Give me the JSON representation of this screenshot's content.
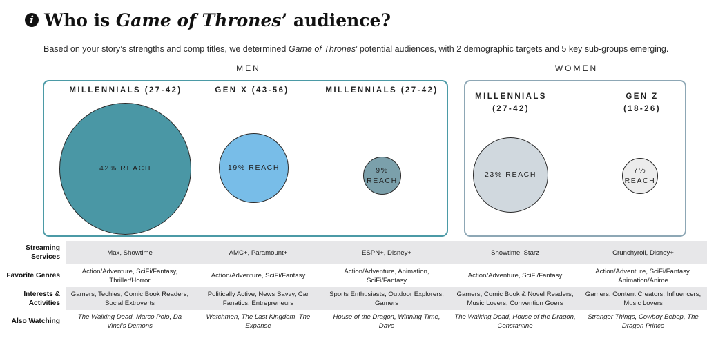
{
  "title": {
    "prefix": "Who is ",
    "italic": "Game of Thrones",
    "suffix": "’ audience?"
  },
  "subtitle": {
    "part1": "Based on your story’s strengths and comp titles, we determined ",
    "italic": "Game of Thrones",
    "part2": "’ potential audiences, with 2 demographic targets and 5 key sub-groups emerging."
  },
  "groups": {
    "men": "MEN",
    "women": "WOMEN"
  },
  "segments": [
    {
      "label": "MILLENNIALS (27-42)",
      "reach_label": "42% REACH",
      "reach": 42,
      "color": "#4a97a5"
    },
    {
      "label": "GEN X (43-56)",
      "reach_label": "19% REACH",
      "reach": 19,
      "color": "#78bde8"
    },
    {
      "label": "MILLENNIALS (27-42)",
      "reach_label_1": "9%",
      "reach_label_2": "REACH",
      "reach": 9,
      "color": "#7ba0ab"
    },
    {
      "label_1": "MILLENNIALS",
      "label_2": "(27-42)",
      "reach_label": "23% REACH",
      "reach": 23,
      "color": "#d0d8de"
    },
    {
      "label_1": "GEN Z",
      "label_2": "(18-26)",
      "reach_label_1": "7%",
      "reach_label_2": "REACH",
      "reach": 7,
      "color": "#ececec"
    }
  ],
  "table": {
    "rows": [
      {
        "label": "Streaming Services",
        "cells": [
          "Max, Showtime",
          "AMC+, Paramount+",
          "ESPN+, Disney+",
          "Showtime, Starz",
          "Crunchyroll, Disney+"
        ]
      },
      {
        "label": "Favorite Genres",
        "cells": [
          "Action/Adventure, SciFi/Fantasy, Thriller/Horror",
          "Action/Adventure, SciFi/Fantasy",
          "Action/Adventure, Animation, SciFi/Fantasy",
          "Action/Adventure, SciFi/Fantasy",
          "Action/Adventure, SciFi/Fantasy, Animation/Anime"
        ]
      },
      {
        "label": "Interests & Activities",
        "cells": [
          "Gamers, Techies, Comic Book Readers, Social Extroverts",
          "Politically Active, News Savvy, Car Fanatics, Entrepreneurs",
          "Sports Enthusiasts, Outdoor Explorers, Gamers",
          "Gamers, Comic Book & Novel Readers, Music Lovers, Convention Goers",
          "Gamers, Content Creators, Influencers, Music Lovers"
        ]
      },
      {
        "label": "Also Watching",
        "cells": [
          "The Walking Dead, Marco Polo, Da Vinci’s Demons",
          "Watchmen, The Last Kingdom, The Expanse",
          "House of the Dragon, Winning Time, Dave",
          "The Walking Dead, House of the Dragon, Constantine",
          "Stranger Things, Cowboy Bebop, The Dragon Prince"
        ]
      }
    ]
  }
}
